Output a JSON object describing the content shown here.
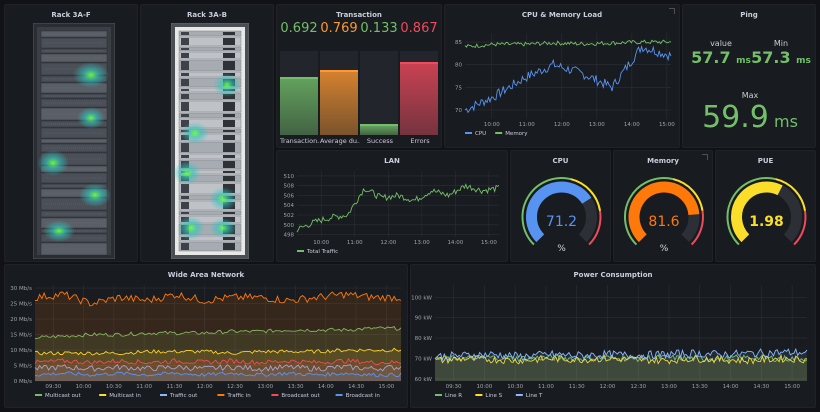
{
  "rack1": {
    "title": "Rack 3A-F"
  },
  "rack2": {
    "title": "Rack 3A-B"
  },
  "transaction": {
    "title": "Transaction",
    "bars": [
      {
        "label": "Transaction...",
        "value": "0.692",
        "fraction": 0.692,
        "color": "#73bf69"
      },
      {
        "label": "Average du...",
        "value": "0.769",
        "fraction": 0.769,
        "color": "#ff9830"
      },
      {
        "label": "Success",
        "value": "0.133",
        "fraction": 0.133,
        "color": "#73bf69"
      },
      {
        "label": "Errors",
        "value": "0.867",
        "fraction": 0.867,
        "color": "#f2495c"
      }
    ]
  },
  "cpumem": {
    "title": "CPU & Memory Load",
    "legend": [
      {
        "name": "CPU",
        "color": "#5794f2"
      },
      {
        "name": "Memory",
        "color": "#73bf69"
      }
    ]
  },
  "ping": {
    "title": "Ping",
    "value_label": "value",
    "value": "57.7",
    "value_unit": "ms",
    "min_label": "Min",
    "min": "57.3",
    "min_unit": "ms",
    "max_label": "Max",
    "max": "59.9",
    "max_unit": "ms",
    "color": "#73bf69"
  },
  "lan": {
    "title": "LAN",
    "legend": [
      {
        "name": "Total Traffic",
        "color": "#73bf69"
      }
    ]
  },
  "cpu_gauge": {
    "title": "CPU",
    "value": "71.2",
    "unit": "%",
    "fraction": 0.712,
    "color": "#5794f2"
  },
  "mem_gauge": {
    "title": "Memory",
    "value": "81.6",
    "unit": "%",
    "fraction": 0.816,
    "color": "#ff780a"
  },
  "pue_gauge": {
    "title": "PUE",
    "value": "1.98",
    "unit": "",
    "fraction": 0.6,
    "color": "#fade2a"
  },
  "wan": {
    "title": "Wide Area Network",
    "legend": [
      {
        "name": "Multicast out",
        "color": "#73bf69"
      },
      {
        "name": "Multicast in",
        "color": "#fade2a"
      },
      {
        "name": "Traffic out",
        "color": "#8ab8ff"
      },
      {
        "name": "Traffic in",
        "color": "#ff780a"
      },
      {
        "name": "Broadcast out",
        "color": "#f2495c"
      },
      {
        "name": "Broadcast in",
        "color": "#5794f2"
      }
    ]
  },
  "power": {
    "title": "Power Consumption",
    "legend": [
      {
        "name": "Line R",
        "color": "#73bf69"
      },
      {
        "name": "Line S",
        "color": "#fade2a"
      },
      {
        "name": "Line T",
        "color": "#8ab8ff"
      }
    ]
  },
  "chart_data": [
    {
      "type": "line",
      "panel": "CPU & Memory Load",
      "x": [
        "09:10",
        "10:00",
        "11:00",
        "12:00",
        "13:00",
        "14:00",
        "15:00",
        "15:25"
      ],
      "xticks": [
        "10:00",
        "11:00",
        "12:00",
        "13:00",
        "14:00",
        "15:00"
      ],
      "yticks": [
        70,
        75,
        80,
        85
      ],
      "ylim": [
        68,
        87
      ],
      "series": [
        {
          "name": "CPU",
          "color": "#5794f2",
          "values": [
            70,
            73,
            77,
            80,
            78,
            75,
            84,
            82
          ]
        },
        {
          "name": "Memory",
          "color": "#73bf69",
          "values": [
            84,
            84.5,
            84.5,
            84.8,
            84.6,
            84.8,
            85,
            85
          ]
        }
      ]
    },
    {
      "type": "line",
      "panel": "LAN",
      "x": [
        "09:15",
        "10:00",
        "10:30",
        "11:00",
        "11:30",
        "12:00",
        "12:30",
        "13:00",
        "13:30",
        "14:00",
        "14:30",
        "15:00",
        "15:10"
      ],
      "xticks": [
        "10:00",
        "11:00",
        "12:00",
        "13:00",
        "14:00",
        "15:00"
      ],
      "yticks": [
        498,
        500,
        502,
        504,
        506,
        508,
        510
      ],
      "ylim": [
        497.5,
        511
      ],
      "series": [
        {
          "name": "Total Traffic",
          "color": "#73bf69",
          "values": [
            499,
            500.5,
            501.5,
            502,
            507.5,
            505.5,
            506,
            505,
            507,
            506,
            508,
            507,
            507.5
          ]
        }
      ]
    },
    {
      "type": "area",
      "panel": "Wide Area Network",
      "x": [
        "09:10",
        "09:30",
        "10:00",
        "10:30",
        "11:00",
        "11:30",
        "12:00",
        "12:30",
        "13:00",
        "13:30",
        "14:00",
        "14:30",
        "15:00",
        "15:10"
      ],
      "xticks": [
        "09:30",
        "10:00",
        "10:30",
        "11:00",
        "11:30",
        "12:00",
        "12:30",
        "13:00",
        "13:30",
        "14:00",
        "14:30",
        "15:00"
      ],
      "yticks": [
        "0 Mb/s",
        "5 Mb/s",
        "10 Mb/s",
        "15 Mb/s",
        "20 Mb/s",
        "25 Mb/s",
        "30 Mb/s"
      ],
      "ylim": [
        0,
        31
      ],
      "series": [
        {
          "name": "Multicast out",
          "color": "#73bf69",
          "values": [
            14,
            14.5,
            15,
            15,
            15.5,
            15.5,
            15.5,
            16,
            16,
            16.5,
            16.5,
            16.5,
            17,
            17
          ]
        },
        {
          "name": "Multicast in",
          "color": "#fade2a",
          "values": [
            9,
            9,
            9,
            9,
            9.5,
            9.5,
            9.5,
            9,
            9.5,
            9.5,
            9.5,
            10,
            10,
            10
          ]
        },
        {
          "name": "Traffic out",
          "color": "#8ab8ff",
          "values": [
            4,
            4.5,
            4,
            4.5,
            4,
            4.5,
            4,
            4.5,
            4,
            4.5,
            4,
            4.5,
            4,
            4.5
          ]
        },
        {
          "name": "Traffic in",
          "color": "#ff780a",
          "values": [
            27,
            28,
            25,
            27,
            26,
            28,
            26,
            27,
            27,
            26,
            27,
            28,
            27,
            27
          ]
        },
        {
          "name": "Broadcast out",
          "color": "#f2495c",
          "values": [
            6,
            6.5,
            6,
            6.5,
            6,
            6.5,
            6,
            6.5,
            6,
            6.5,
            6,
            6.5,
            6,
            6
          ]
        },
        {
          "name": "Broadcast in",
          "color": "#5794f2",
          "values": [
            2,
            2.5,
            2,
            2.5,
            2,
            2.5,
            2,
            2.5,
            2,
            2.5,
            2,
            2.5,
            2,
            2
          ]
        }
      ]
    },
    {
      "type": "line",
      "panel": "Power Consumption",
      "x": [
        "09:10",
        "09:30",
        "10:00",
        "10:30",
        "11:00",
        "11:30",
        "12:00",
        "12:30",
        "13:00",
        "13:30",
        "14:00",
        "14:30",
        "15:00",
        "15:10"
      ],
      "xticks": [
        "09:30",
        "10:00",
        "10:30",
        "11:00",
        "11:30",
        "12:00",
        "12:30",
        "13:00",
        "13:30",
        "14:00",
        "14:30",
        "15:00"
      ],
      "yticks": [
        "60 kW",
        "70 kW",
        "80 kW",
        "90 kW",
        "100 kW"
      ],
      "ylim": [
        59,
        106
      ],
      "series": [
        {
          "name": "Line R",
          "color": "#73bf69",
          "values": [
            70,
            70,
            70.5,
            70,
            70.5,
            70,
            70.5,
            70,
            70.5,
            70,
            70,
            70.5,
            70,
            70
          ]
        },
        {
          "name": "Line S",
          "color": "#fade2a",
          "values": [
            69,
            70,
            69.5,
            69,
            70,
            69.5,
            70,
            69.5,
            69,
            70,
            69.5,
            69,
            70,
            69.5
          ]
        },
        {
          "name": "Line T",
          "color": "#8ab8ff",
          "values": [
            71,
            71.5,
            72,
            71,
            72,
            71.5,
            72,
            71.5,
            72,
            72.5,
            72,
            72.5,
            73,
            73
          ]
        }
      ]
    }
  ]
}
